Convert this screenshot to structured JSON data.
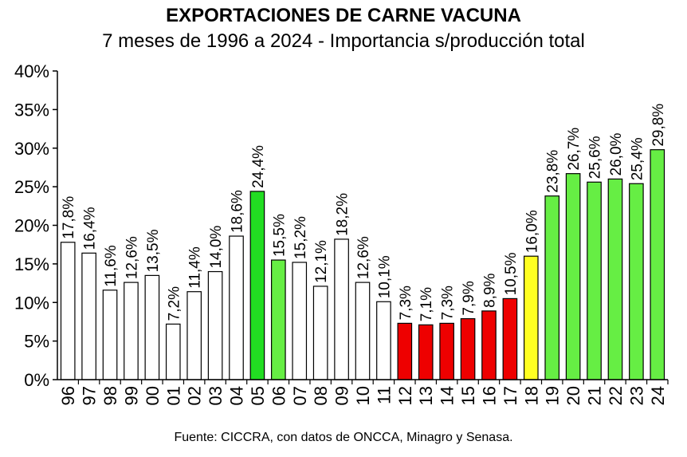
{
  "chart_data": {
    "type": "bar",
    "title": "EXPORTACIONES DE CARNE VACUNA",
    "subtitle": "7 meses de 1996 a 2024 - Importancia s/producción total",
    "source": "Fuente: CICCRA, con datos de ONCCA, Minagro y Senasa.",
    "categories": [
      "96",
      "97",
      "98",
      "99",
      "00",
      "01",
      "02",
      "03",
      "04",
      "05",
      "06",
      "07",
      "08",
      "09",
      "10",
      "11",
      "12",
      "13",
      "14",
      "15",
      "16",
      "17",
      "18",
      "19",
      "20",
      "21",
      "22",
      "23",
      "24"
    ],
    "values": [
      17.8,
      16.4,
      11.6,
      12.6,
      13.5,
      7.2,
      11.4,
      14.0,
      18.6,
      24.4,
      15.5,
      15.2,
      12.1,
      18.2,
      12.6,
      10.1,
      7.3,
      7.1,
      7.3,
      7.9,
      8.9,
      10.5,
      16.0,
      23.8,
      26.7,
      25.6,
      26.0,
      25.4,
      29.8
    ],
    "value_labels": [
      "17,8%",
      "16,4%",
      "11,6%",
      "12,6%",
      "13,5%",
      "7,2%",
      "11,4%",
      "14,0%",
      "18,6%",
      "24,4%",
      "15,5%",
      "15,2%",
      "12,1%",
      "18,2%",
      "12,6%",
      "10,1%",
      "7,3%",
      "7,1%",
      "7,3%",
      "7,9%",
      "8,9%",
      "10,5%",
      "16,0%",
      "23,8%",
      "26,7%",
      "25,6%",
      "26,0%",
      "25,4%",
      "29,8%"
    ],
    "bar_colors": [
      "#ffffff",
      "#ffffff",
      "#ffffff",
      "#ffffff",
      "#ffffff",
      "#ffffff",
      "#ffffff",
      "#ffffff",
      "#ffffff",
      "#22dd22",
      "#66ee44",
      "#ffffff",
      "#ffffff",
      "#ffffff",
      "#ffffff",
      "#ffffff",
      "#ee0000",
      "#ee0000",
      "#ee0000",
      "#ee0000",
      "#ee0000",
      "#ee0000",
      "#ffff22",
      "#66ee44",
      "#66ee44",
      "#66ee44",
      "#66ee44",
      "#66ee44",
      "#66ee44"
    ],
    "ylim": [
      0,
      40
    ],
    "yticks": [
      "0%",
      "5%",
      "10%",
      "15%",
      "20%",
      "25%",
      "30%",
      "35%",
      "40%"
    ],
    "xlabel": "",
    "ylabel": "",
    "grid": false,
    "legend": "none"
  }
}
